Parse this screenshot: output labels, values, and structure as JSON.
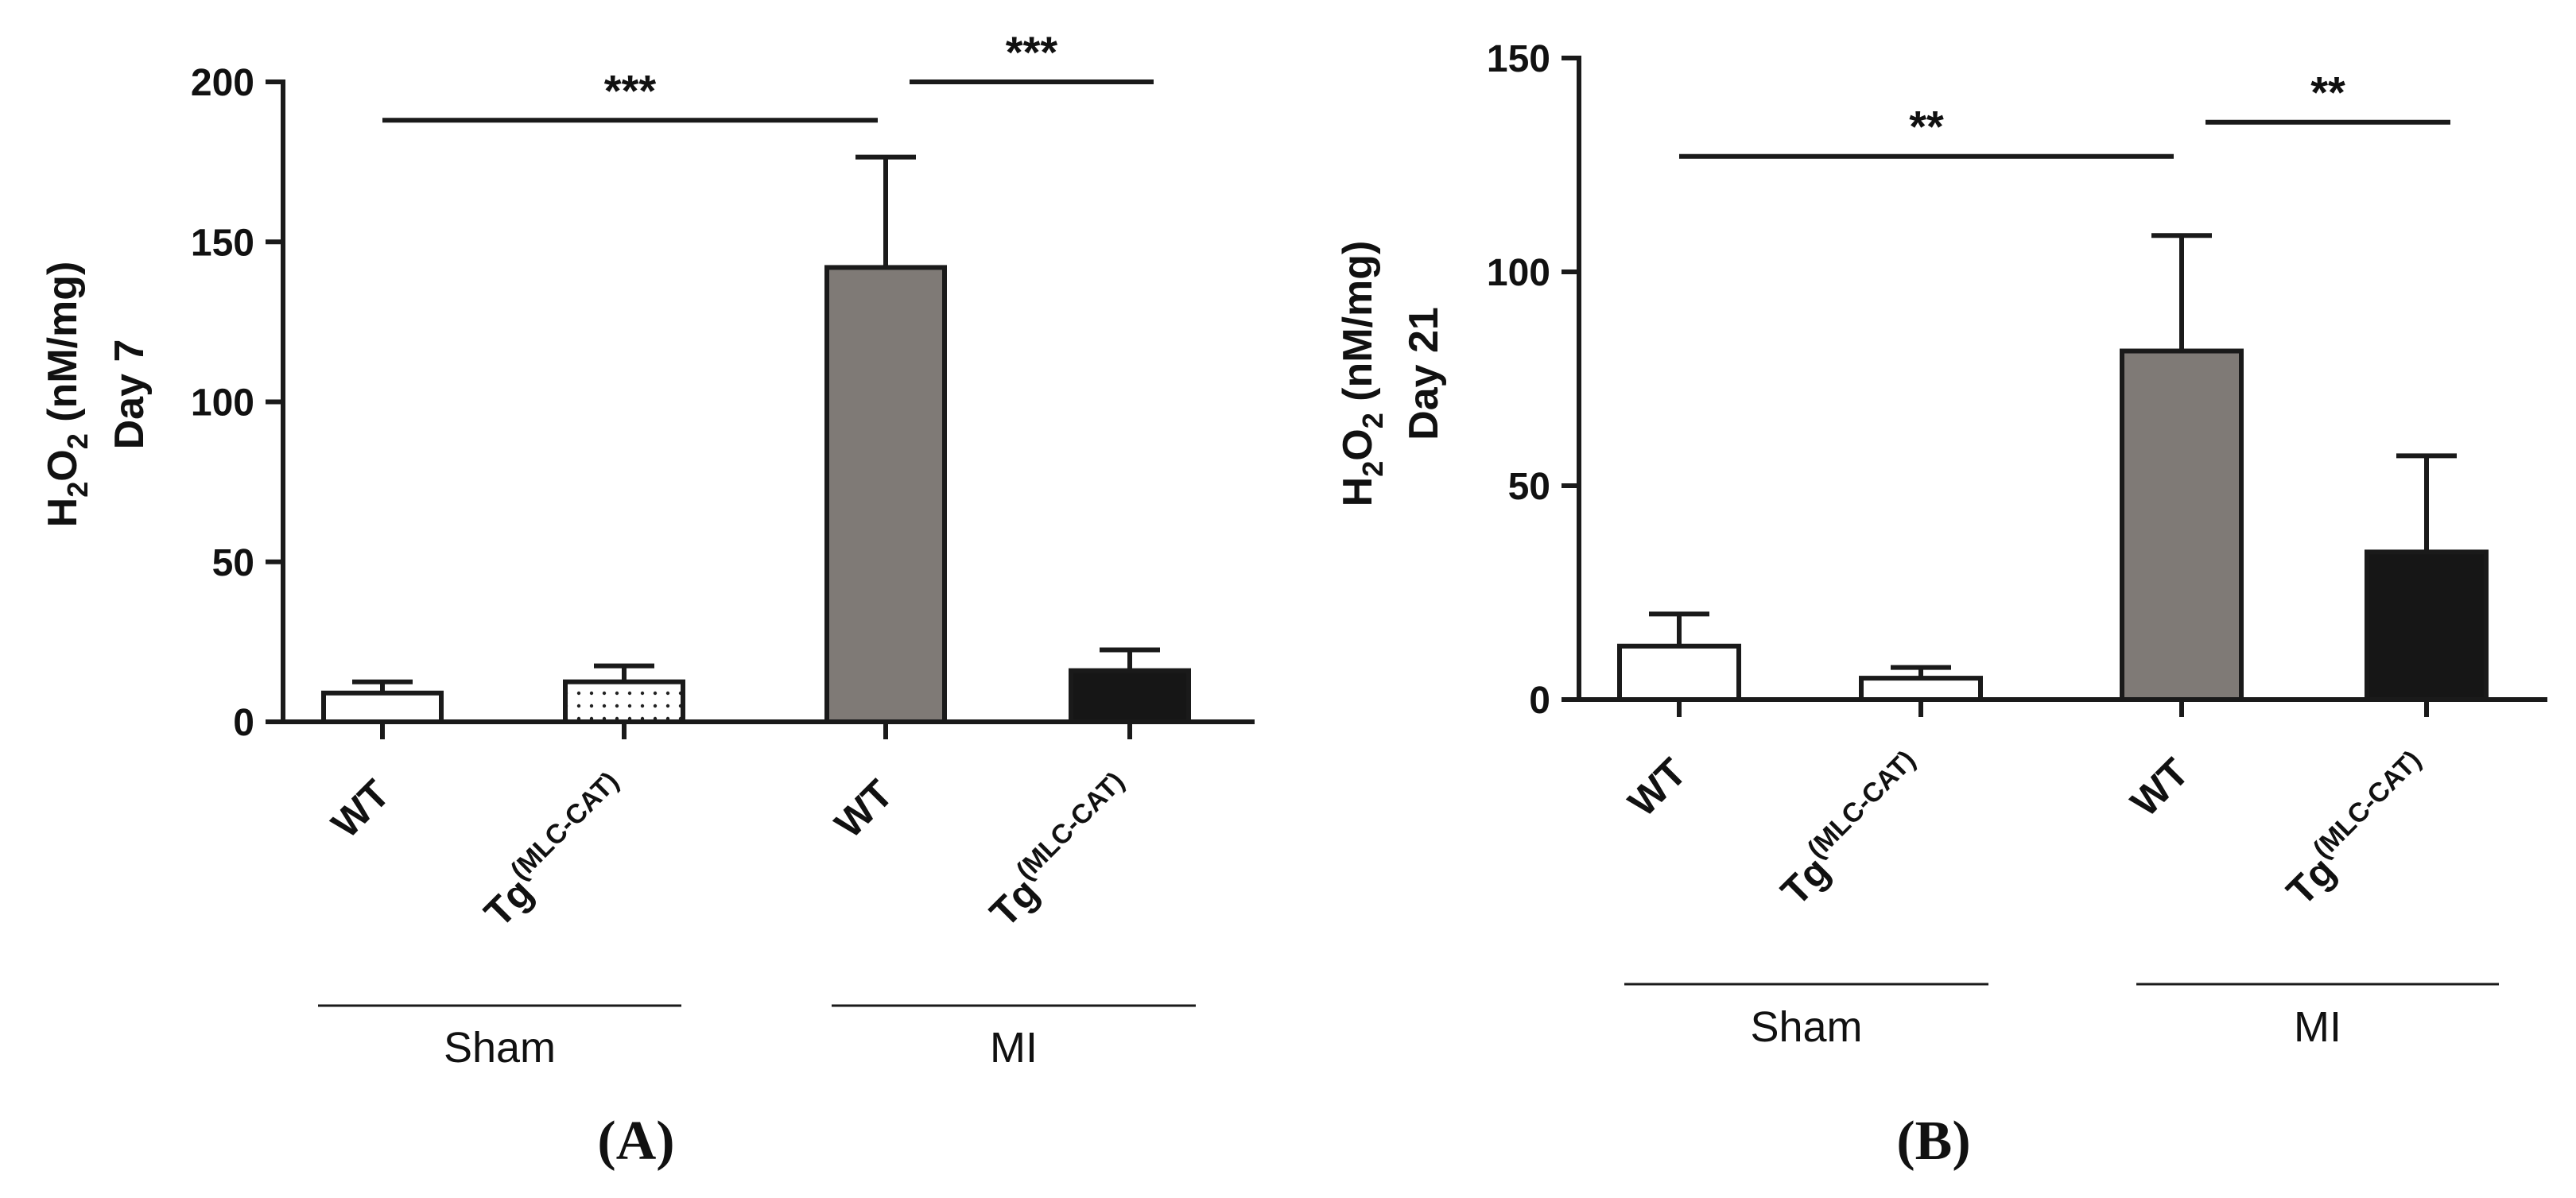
{
  "chart_data": [
    {
      "panel": "A",
      "type": "bar",
      "ylabel": {
        "main": "H",
        "sub1": "2",
        "mid": "O",
        "sub2": "2",
        "rest": " (nM/mg)",
        "line2": "Day 7"
      },
      "ylim": [
        0,
        200
      ],
      "yticks": [
        0,
        50,
        100,
        150,
        200
      ],
      "categories": [
        {
          "main": "WT",
          "sup": ""
        },
        {
          "main": "Tg",
          "sup": "(MLC-CAT)"
        },
        {
          "main": "WT",
          "sup": ""
        },
        {
          "main": "Tg",
          "sup": "(MLC-CAT)"
        }
      ],
      "values": [
        9,
        12.5,
        142,
        16
      ],
      "errors": [
        3.5,
        5,
        34.5,
        6.5
      ],
      "fills": [
        "#ffffff",
        "dots",
        "#7f7a76",
        "#161616"
      ],
      "groups": [
        {
          "label": "Sham",
          "members": [
            0,
            1
          ]
        },
        {
          "label": "MI",
          "members": [
            2,
            3
          ]
        }
      ],
      "significance": [
        {
          "from": 0,
          "to": 2,
          "level": 188,
          "label": "***"
        },
        {
          "from": 2,
          "to": 3,
          "level": 200,
          "label": "***"
        }
      ],
      "panel_label": "(A)"
    },
    {
      "panel": "B",
      "type": "bar",
      "ylabel": {
        "main": "H",
        "sub1": "2",
        "mid": "O",
        "sub2": "2",
        "rest": " (nM/mg)",
        "line2": "Day 21"
      },
      "ylim": [
        0,
        150
      ],
      "yticks": [
        0,
        50,
        100,
        150
      ],
      "categories": [
        {
          "main": "WT",
          "sup": ""
        },
        {
          "main": "Tg",
          "sup": "(MLC-CAT)"
        },
        {
          "main": "WT",
          "sup": ""
        },
        {
          "main": "Tg",
          "sup": "(MLC-CAT)"
        }
      ],
      "values": [
        12.5,
        5,
        81.5,
        34.5
      ],
      "errors": [
        7.5,
        2.5,
        27,
        22.5
      ],
      "fills": [
        "#ffffff",
        "#ffffff",
        "#7f7a76",
        "#161616"
      ],
      "groups": [
        {
          "label": "Sham",
          "members": [
            0,
            1
          ]
        },
        {
          "label": "MI",
          "members": [
            2,
            3
          ]
        }
      ],
      "significance": [
        {
          "from": 0,
          "to": 2,
          "level": 127,
          "label": "**"
        },
        {
          "from": 2,
          "to": 3,
          "level": 135,
          "label": "**"
        }
      ],
      "panel_label": "(B)"
    }
  ]
}
